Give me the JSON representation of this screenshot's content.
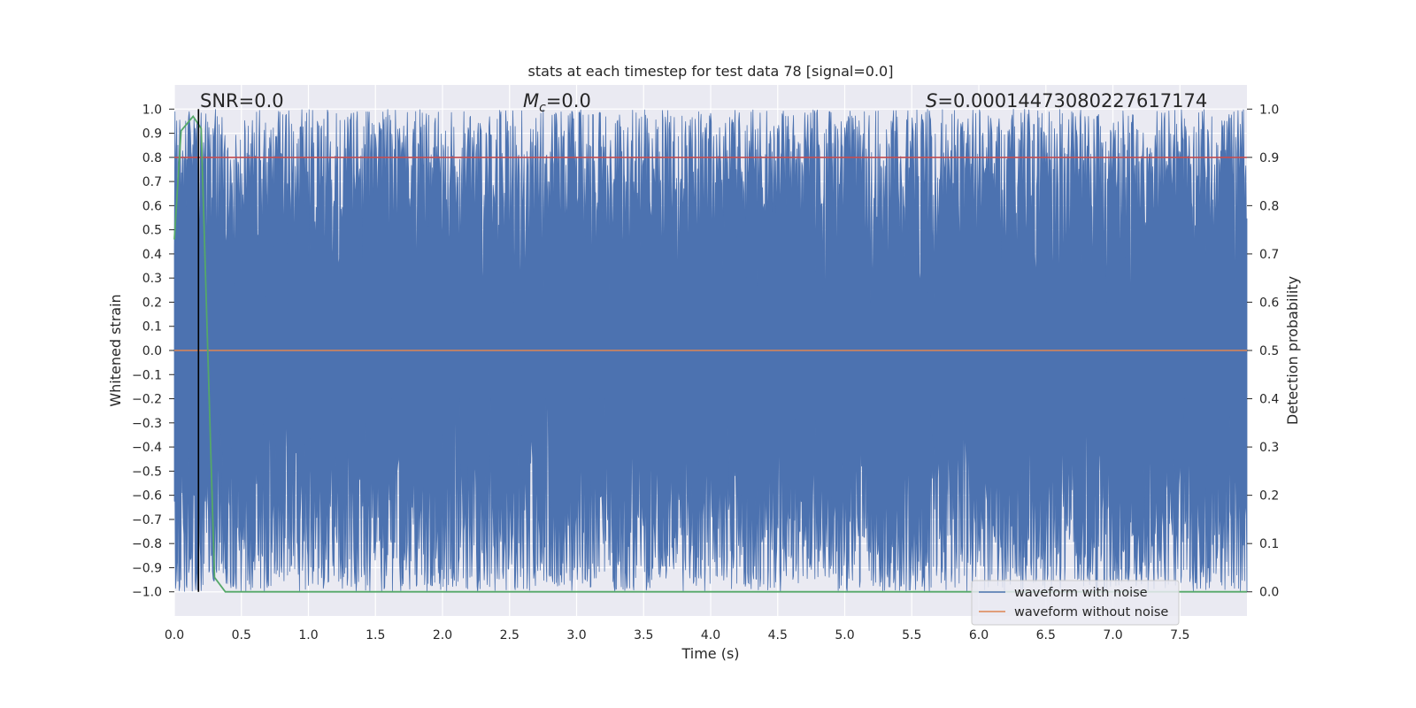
{
  "chart_data": {
    "type": "line",
    "title": "stats at each timestep for test data 78 [signal=0.0]",
    "xlabel": "Time (s)",
    "ylabel_left": "Whitened strain",
    "ylabel_right": "Detection probability",
    "xlim": [
      0.0,
      8.0
    ],
    "ylim_left": [
      -1.1,
      1.1
    ],
    "ylim_right": [
      -0.05,
      1.05
    ],
    "xticks": [
      0.0,
      0.5,
      1.0,
      1.5,
      2.0,
      2.5,
      3.0,
      3.5,
      4.0,
      4.5,
      5.0,
      5.5,
      6.0,
      6.5,
      7.0,
      7.5
    ],
    "xtick_labels": [
      "0.0",
      "0.5",
      "1.0",
      "1.5",
      "2.0",
      "2.5",
      "3.0",
      "3.5",
      "4.0",
      "4.5",
      "5.0",
      "5.5",
      "6.0",
      "6.5",
      "7.0",
      "7.5"
    ],
    "yticks_left": [
      1.0,
      0.9,
      0.8,
      0.7,
      0.6,
      0.5,
      0.4,
      0.3,
      0.2,
      0.1,
      0.0,
      -0.1,
      -0.2,
      -0.3,
      -0.4,
      -0.5,
      -0.6,
      -0.7,
      -0.8,
      -0.9,
      -1.0
    ],
    "ytick_labels_left": [
      "1.0",
      "0.9",
      "0.8",
      "0.7",
      "0.6",
      "0.5",
      "0.4",
      "0.3",
      "0.2",
      "0.1",
      "0.0",
      "−0.1",
      "−0.2",
      "−0.3",
      "−0.4",
      "−0.5",
      "−0.6",
      "−0.7",
      "−0.8",
      "−0.9",
      "−1.0"
    ],
    "yticks_right": [
      1.0,
      0.9,
      0.8,
      0.7,
      0.6,
      0.5,
      0.4,
      0.3,
      0.2,
      0.1,
      0.0
    ],
    "ytick_labels_right": [
      "1.0",
      "0.9",
      "0.8",
      "0.7",
      "0.6",
      "0.5",
      "0.4",
      "0.3",
      "0.2",
      "0.1",
      "0.0"
    ],
    "annotations": {
      "snr": "SNR=0.0",
      "mc_symbol": "M",
      "mc_subscript": "c",
      "mc_value": "=0.0",
      "s_symbol": "S",
      "s_value": "=0.00014473080227617174"
    },
    "legend": {
      "location": "lower right",
      "entries": [
        {
          "label": "waveform with noise",
          "color": "#4c72b0"
        },
        {
          "label": "waveform without noise",
          "color": "#dd8452"
        }
      ]
    },
    "series": [
      {
        "name": "waveform with noise",
        "axis": "left",
        "color": "#4c72b0",
        "kind": "noise",
        "range": [
          -1.0,
          1.0
        ],
        "x_range": [
          0.0,
          8.0
        ]
      },
      {
        "name": "waveform without noise",
        "axis": "left",
        "color": "#dd8452",
        "kind": "constant",
        "value": 0.0
      },
      {
        "name": "threshold",
        "axis": "right",
        "color": "#c44e52",
        "kind": "constant",
        "value": 0.9
      },
      {
        "name": "detection probability",
        "axis": "right",
        "color": "#55a868",
        "kind": "line",
        "x": [
          0.0,
          0.05,
          0.14,
          0.2,
          0.3,
          0.38,
          8.0
        ],
        "y": [
          0.73,
          0.955,
          0.985,
          0.96,
          0.03,
          0.0,
          0.0
        ]
      },
      {
        "name": "marker",
        "axis": "left",
        "color": "#000000",
        "kind": "vline",
        "x": 0.18
      }
    ]
  }
}
